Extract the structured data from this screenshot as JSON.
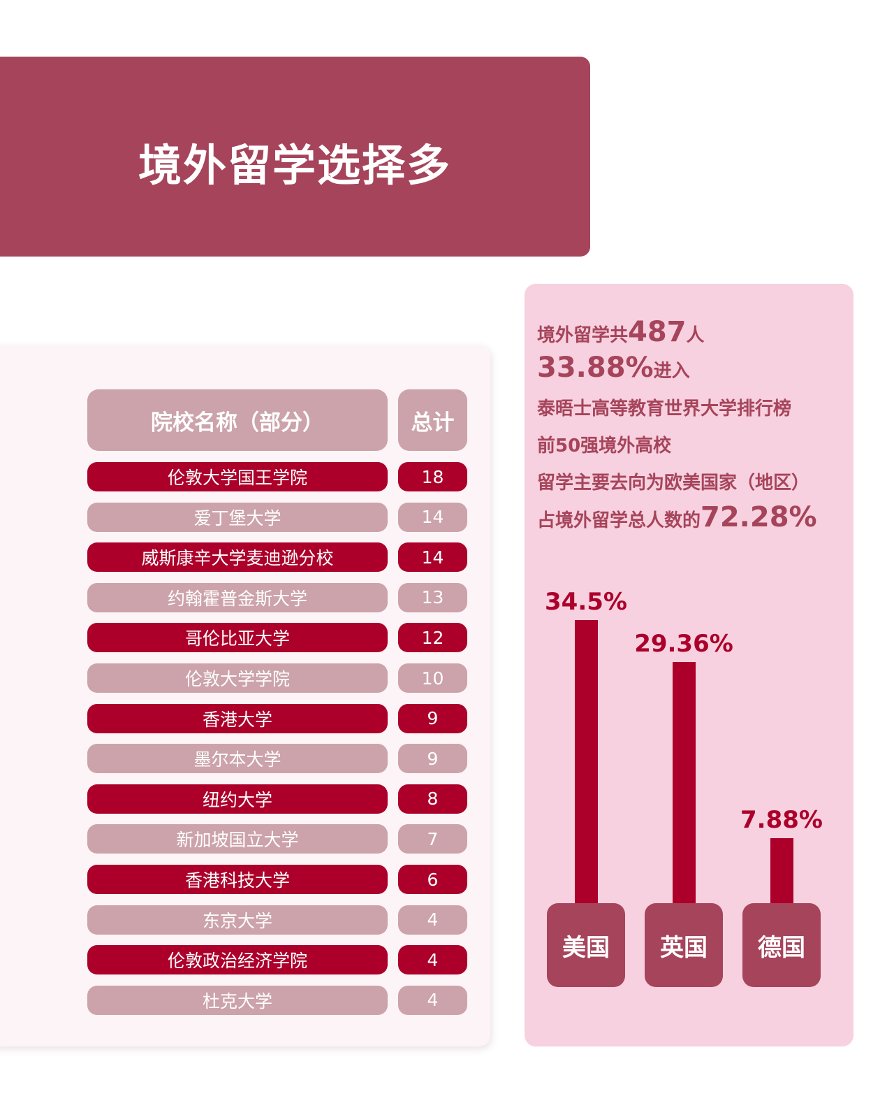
{
  "title": "境外留学选择多",
  "table": {
    "header_name": "院校名称（部分）",
    "header_total": "总计",
    "rows": [
      {
        "name": "伦敦大学国王学院",
        "total": "18"
      },
      {
        "name": "爱丁堡大学",
        "total": "14"
      },
      {
        "name": "威斯康辛大学麦迪逊分校",
        "total": "14"
      },
      {
        "name": "约翰霍普金斯大学",
        "total": "13"
      },
      {
        "name": "哥伦比亚大学",
        "total": "12"
      },
      {
        "name": "伦敦大学学院",
        "total": "10"
      },
      {
        "name": "香港大学",
        "total": "9"
      },
      {
        "name": "墨尔本大学",
        "total": "9"
      },
      {
        "name": "纽约大学",
        "total": "8"
      },
      {
        "name": "新加坡国立大学",
        "total": "7"
      },
      {
        "name": "香港科技大学",
        "total": "6"
      },
      {
        "name": "东京大学",
        "total": "4"
      },
      {
        "name": "伦敦政治经济学院",
        "total": "4"
      },
      {
        "name": "杜克大学",
        "total": "4"
      }
    ]
  },
  "info": {
    "l1_pre": "境外留学共",
    "l1_num": "487",
    "l1_post": "人",
    "l2_num": "33.88%",
    "l2_post": "进入",
    "l3": "泰晤士高等教育世界大学排行榜",
    "l4": "前50强境外高校",
    "l5": "留学主要去向为欧美国家（地区）",
    "l6_pre": "占境外留学总人数的",
    "l6_num": "72.28%"
  },
  "chart_data": {
    "type": "bar",
    "categories": [
      "美国",
      "英国",
      "德国"
    ],
    "values": [
      34.5,
      29.36,
      7.88
    ],
    "labels": [
      "34.5%",
      "29.36%",
      "7.88%"
    ],
    "title": "",
    "xlabel": "",
    "ylabel": "",
    "ylim": [
      0,
      34.5
    ]
  },
  "colors": {
    "banner": "#a6445b",
    "dark_row": "#ac002b",
    "light_row": "#cca3aa",
    "info_card": "#f7d1df",
    "bar": "#ac002b"
  }
}
